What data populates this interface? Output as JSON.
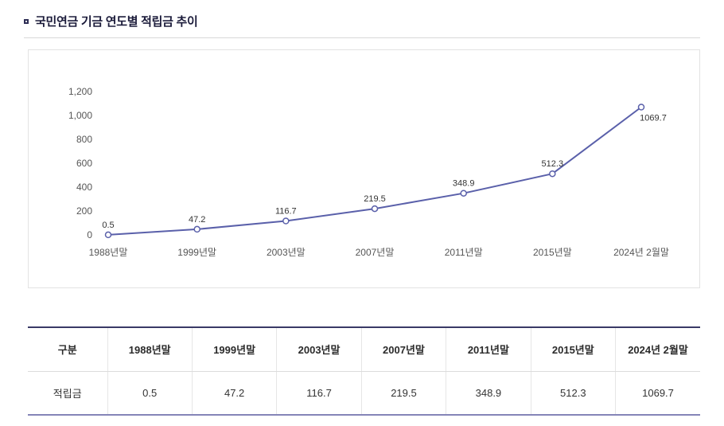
{
  "page": {
    "title": "국민연금 기금 연도별 적립금 추이"
  },
  "chart_data": {
    "type": "line",
    "title": "국민연금 기금 연도별 적립금 추이",
    "categories": [
      "1988년말",
      "1999년말",
      "2003년말",
      "2007년말",
      "2011년말",
      "2015년말",
      "2024년 2월말"
    ],
    "values": [
      0.5,
      47.2,
      116.7,
      219.5,
      348.9,
      512.3,
      1069.7
    ],
    "value_labels": [
      "0.5",
      "47.2",
      "116.7",
      "219.5",
      "348.9",
      "512.3",
      "1069.7"
    ],
    "yticks": [
      0,
      200,
      400,
      600,
      800,
      1000,
      1200
    ],
    "ylim": [
      0,
      1200
    ],
    "grid": false,
    "legend": "none",
    "line_color": "#5a60aa",
    "point_fill": "#ffffff",
    "label_color": "#333333",
    "axis_text_color": "#555555"
  },
  "table": {
    "headers": [
      "구분",
      "1988년말",
      "1999년말",
      "2003년말",
      "2007년말",
      "2011년말",
      "2015년말",
      "2024년 2월말"
    ],
    "rows": [
      [
        "적립금",
        "0.5",
        "47.2",
        "116.7",
        "219.5",
        "348.9",
        "512.3",
        "1069.7"
      ]
    ]
  }
}
